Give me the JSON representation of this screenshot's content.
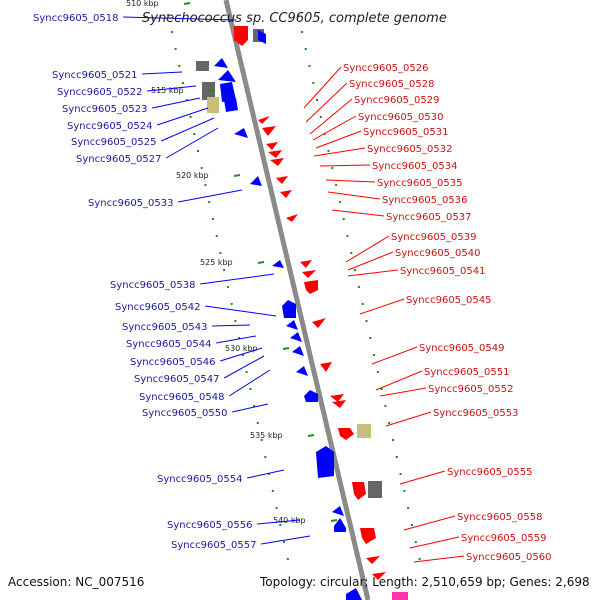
{
  "title": "Synechococcus sp. CC9605, complete genome",
  "footer": {
    "accession": "Accession: NC_007516",
    "topology": "Topology: circular; Length: 2,510,659 bp; Genes: 2,698"
  },
  "colors": {
    "backbone": "#8a8a8a",
    "forward_gene": "#ff0000",
    "reverse_gene": "#0000ff",
    "other_feature_dark": "#666666",
    "other_feature_tan": "#c8bd7a",
    "left_label": "#1a1aa0",
    "right_label": "#cc1111",
    "tick": "#1e8c1e"
  },
  "ticks": [
    {
      "text": "510 kbp",
      "kbp": 510
    },
    {
      "text": "515 kbp",
      "kbp": 515
    },
    {
      "text": "520 kbp",
      "kbp": 520
    },
    {
      "text": "525 kbp",
      "kbp": 525
    },
    {
      "text": "530 kbp",
      "kbp": 530
    },
    {
      "text": "535 kbp",
      "kbp": 535
    },
    {
      "text": "540 kbp",
      "kbp": 540
    }
  ],
  "left_labels": [
    "Syncc9605_0518",
    "Syncc9605_0521",
    "Syncc9605_0522",
    "Syncc9605_0523",
    "Syncc9605_0524",
    "Syncc9605_0525",
    "Syncc9605_0527",
    "Syncc9605_0533",
    "Syncc9605_0538",
    "Syncc9605_0542",
    "Syncc9605_0543",
    "Syncc9605_0544",
    "Syncc9605_0546",
    "Syncc9605_0547",
    "Syncc9605_0548",
    "Syncc9605_0550",
    "Syncc9605_0554",
    "Syncc9605_0556",
    "Syncc9605_0557"
  ],
  "right_labels": [
    "Syncc9605_0526",
    "Syncc9605_0528",
    "Syncc9605_0529",
    "Syncc9605_0530",
    "Syncc9605_0531",
    "Syncc9605_0532",
    "Syncc9605_0534",
    "Syncc9605_0535",
    "Syncc9605_0536",
    "Syncc9605_0537",
    "Syncc9605_0539",
    "Syncc9605_0540",
    "Syncc9605_0541",
    "Syncc9605_0545",
    "Syncc9605_0549",
    "Syncc9605_0551",
    "Syncc9605_0552",
    "Syncc9605_0553",
    "Syncc9605_0555",
    "Syncc9605_0558",
    "Syncc9605_0559",
    "Syncc9605_0560"
  ]
}
